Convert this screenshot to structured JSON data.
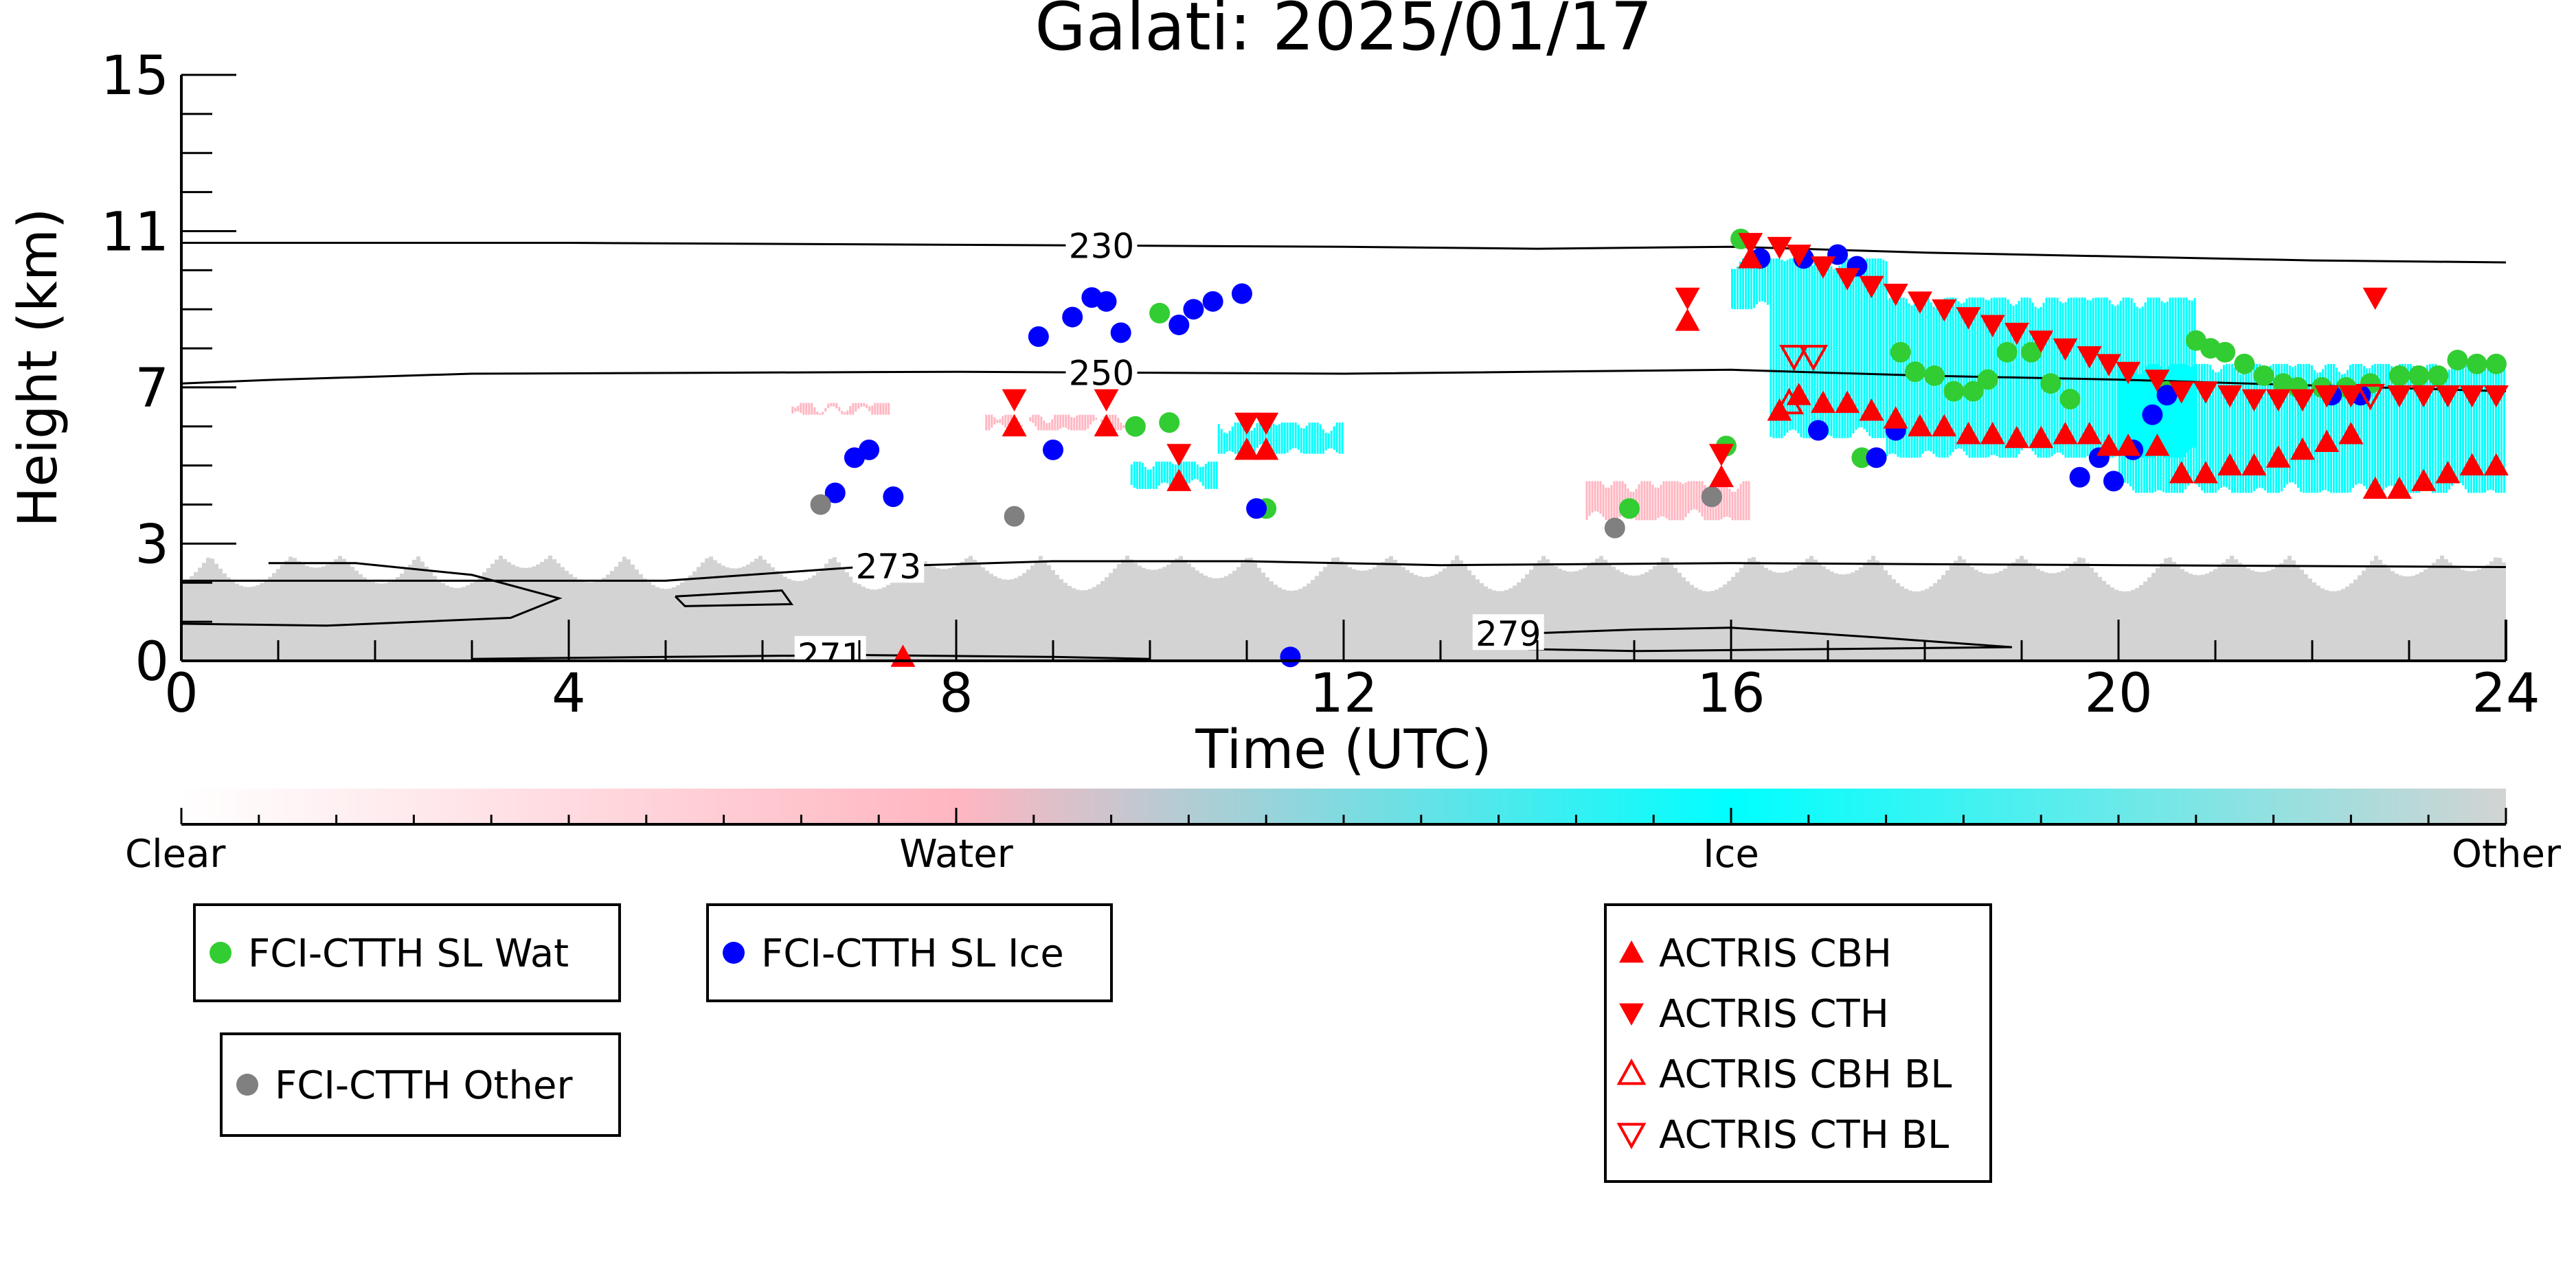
{
  "chart_data": {
    "type": "scatter",
    "title": "Galati: 2025/01/17",
    "xlabel": "Time (UTC)",
    "ylabel": "Height (km)",
    "xlim": [
      0,
      24
    ],
    "ylim": [
      0,
      15
    ],
    "xticks": [
      0,
      4,
      8,
      12,
      16,
      20,
      24
    ],
    "yticks": [
      0,
      3,
      7,
      11,
      15
    ],
    "colors": {
      "water_sat": "#32cd32",
      "ice_sat": "#0000ff",
      "other_sat": "#808080",
      "actris": "#ff0000",
      "clear": "#ffffff",
      "water": "#ffb6c1",
      "ice": "#00ffff",
      "other": "#d3d3d3"
    },
    "colorbar": {
      "labels": [
        "Clear",
        "Water",
        "Ice",
        "Other"
      ]
    },
    "contours": [
      {
        "label": "230",
        "label_x": 9.5,
        "points": [
          [
            0,
            10.7
          ],
          [
            4,
            10.7
          ],
          [
            8,
            10.65
          ],
          [
            12,
            10.6
          ],
          [
            14,
            10.55
          ],
          [
            16,
            10.6
          ],
          [
            18,
            10.45
          ],
          [
            20,
            10.35
          ],
          [
            22,
            10.25
          ],
          [
            24,
            10.2
          ]
        ]
      },
      {
        "label": "250",
        "label_x": 9.5,
        "points": [
          [
            0,
            7.1
          ],
          [
            1,
            7.2
          ],
          [
            3,
            7.35
          ],
          [
            8,
            7.4
          ],
          [
            12,
            7.35
          ],
          [
            16,
            7.45
          ],
          [
            18,
            7.3
          ],
          [
            20,
            7.2
          ],
          [
            22,
            7.05
          ],
          [
            24,
            6.9
          ]
        ]
      },
      {
        "label": "273",
        "label_x": 7.3,
        "points": [
          [
            0,
            2.05
          ],
          [
            5,
            2.05
          ],
          [
            7,
            2.4
          ],
          [
            9,
            2.55
          ],
          [
            11,
            2.55
          ],
          [
            13,
            2.45
          ],
          [
            16,
            2.5
          ],
          [
            20,
            2.45
          ],
          [
            24,
            2.4
          ]
        ]
      },
      {
        "label": "",
        "points": [
          [
            0.9,
            2.5
          ],
          [
            1.8,
            2.5
          ],
          [
            3,
            2.2
          ],
          [
            3.9,
            1.6
          ],
          [
            3.4,
            1.1
          ],
          [
            1.5,
            0.9
          ],
          [
            0,
            0.95
          ]
        ]
      },
      {
        "label": "",
        "points": [
          [
            5.1,
            1.65
          ],
          [
            6.2,
            1.8
          ],
          [
            6.3,
            1.45
          ],
          [
            5.2,
            1.4
          ],
          [
            5.1,
            1.65
          ]
        ]
      },
      {
        "label": "271",
        "label_x": 6.7,
        "points": [
          [
            3,
            0.05
          ],
          [
            5,
            0.1
          ],
          [
            7,
            0.15
          ],
          [
            9,
            0.1
          ],
          [
            10,
            0.05
          ]
        ]
      },
      {
        "label": "279",
        "label_x": 13.7,
        "points": [
          [
            13.9,
            0.7
          ],
          [
            15,
            0.8
          ],
          [
            16,
            0.85
          ],
          [
            17.5,
            0.6
          ],
          [
            18.9,
            0.35
          ],
          [
            17,
            0.3
          ],
          [
            15,
            0.25
          ],
          [
            13.9,
            0.3
          ]
        ]
      }
    ],
    "phase_regions": [
      {
        "phase": "other",
        "x0": 0,
        "x1": 24,
        "y0": 0,
        "y1": 3.4
      },
      {
        "phase": "water",
        "x0": 6.3,
        "x1": 7.3,
        "y0": 6.3,
        "y1": 6.6
      },
      {
        "phase": "water",
        "x0": 8.3,
        "x1": 9.8,
        "y0": 5.9,
        "y1": 6.3
      },
      {
        "phase": "ice",
        "x0": 9.8,
        "x1": 10.7,
        "y0": 4.4,
        "y1": 5.1
      },
      {
        "phase": "ice",
        "x0": 10.7,
        "x1": 12.0,
        "y0": 5.3,
        "y1": 6.1
      },
      {
        "phase": "water",
        "x0": 14.5,
        "x1": 16.2,
        "y0": 3.6,
        "y1": 4.6
      },
      {
        "phase": "ice",
        "x0": 16.0,
        "x1": 16.4,
        "y0": 9.0,
        "y1": 10.3
      },
      {
        "phase": "ice",
        "x0": 16.4,
        "x1": 17.6,
        "y0": 5.7,
        "y1": 10.3
      },
      {
        "phase": "ice",
        "x0": 17.6,
        "x1": 20.8,
        "y0": 5.2,
        "y1": 9.3
      },
      {
        "phase": "ice",
        "x0": 20.0,
        "x1": 24.0,
        "y0": 4.3,
        "y1": 7.6
      }
    ],
    "series": [
      {
        "name": "FCI-CTTH SL Wat",
        "marker": "circle",
        "color": "#32cd32",
        "x": [
          9.85,
          10.1,
          10.2,
          11.2,
          14.95,
          15.95,
          16.1,
          17.35,
          17.75,
          17.9,
          18.1,
          18.3,
          18.5,
          18.65,
          18.85,
          19.1,
          19.3,
          19.5,
          20.5,
          20.8,
          20.95,
          21.1,
          21.3,
          21.5,
          21.7,
          21.85,
          22.1,
          22.35,
          22.6,
          22.9,
          23.1,
          23.3,
          23.5,
          23.7,
          23.9
        ],
        "y": [
          6.0,
          8.9,
          6.1,
          3.9,
          3.9,
          5.5,
          10.8,
          5.2,
          7.9,
          7.4,
          7.3,
          6.9,
          6.9,
          7.2,
          7.9,
          7.9,
          7.1,
          6.7,
          6.9,
          8.2,
          8.0,
          7.9,
          7.6,
          7.3,
          7.1,
          7.0,
          7.0,
          7.0,
          7.1,
          7.3,
          7.3,
          7.3,
          7.7,
          7.6,
          7.6
        ]
      },
      {
        "name": "FCI-CTTH SL Ice",
        "marker": "circle",
        "color": "#0000ff",
        "x": [
          6.75,
          6.95,
          7.1,
          7.35,
          8.85,
          9.0,
          9.2,
          9.4,
          9.55,
          9.7,
          10.3,
          10.45,
          10.65,
          10.95,
          11.1,
          11.45,
          15.8,
          16.3,
          16.75,
          16.9,
          17.1,
          17.3,
          17.5,
          17.7,
          19.6,
          19.8,
          19.95,
          20.15,
          20.35,
          20.5,
          22.2,
          22.5
        ],
        "y": [
          4.3,
          5.2,
          5.4,
          4.2,
          8.3,
          5.4,
          8.8,
          9.3,
          9.2,
          8.4,
          8.6,
          9.0,
          9.2,
          9.4,
          3.9,
          0.1,
          4.2,
          10.3,
          10.3,
          5.9,
          10.4,
          10.1,
          5.2,
          5.9,
          4.7,
          5.2,
          4.6,
          5.4,
          6.3,
          6.8,
          6.8,
          6.8
        ]
      },
      {
        "name": "FCI-CTTH Other",
        "marker": "circle",
        "color": "#808080",
        "x": [
          6.6,
          8.6,
          14.8,
          15.8
        ],
        "y": [
          4.0,
          3.7,
          3.4,
          4.2
        ]
      },
      {
        "name": "ACTRIS CBH",
        "marker": "triangle-up",
        "color": "#ff0000",
        "x": [
          7.45,
          8.6,
          9.55,
          10.3,
          11.0,
          11.2,
          15.55,
          15.9,
          16.2,
          16.5,
          16.7,
          16.95,
          17.2,
          17.45,
          17.7,
          17.95,
          18.2,
          18.45,
          18.7,
          18.95,
          19.2,
          19.45,
          19.7,
          19.9,
          20.1,
          20.4,
          20.65,
          20.9,
          21.15,
          21.4,
          21.65,
          21.9,
          22.15,
          22.4,
          22.65,
          22.9,
          23.15,
          23.4,
          23.65,
          23.9
        ],
        "y": [
          0.1,
          6.0,
          6.0,
          4.6,
          5.4,
          5.4,
          8.7,
          4.7,
          10.3,
          6.4,
          6.8,
          6.6,
          6.6,
          6.4,
          6.2,
          6.0,
          6.0,
          5.8,
          5.8,
          5.7,
          5.7,
          5.8,
          5.8,
          5.5,
          5.5,
          5.5,
          4.8,
          4.8,
          5.0,
          5.0,
          5.2,
          5.4,
          5.6,
          5.8,
          4.4,
          4.4,
          4.6,
          4.8,
          5.0,
          5.0
        ]
      },
      {
        "name": "ACTRIS CTH",
        "marker": "triangle-down",
        "color": "#ff0000",
        "x": [
          8.6,
          9.55,
          10.3,
          11.0,
          11.2,
          15.55,
          15.9,
          16.2,
          16.5,
          16.7,
          16.95,
          17.2,
          17.45,
          17.7,
          17.95,
          18.2,
          18.45,
          18.7,
          18.95,
          19.2,
          19.45,
          19.7,
          19.9,
          20.1,
          20.4,
          20.65,
          20.9,
          21.15,
          21.4,
          21.65,
          21.9,
          22.15,
          22.4,
          22.65,
          22.9,
          23.15,
          23.4,
          23.65,
          23.9
        ],
        "y": [
          6.7,
          6.7,
          5.3,
          6.1,
          6.1,
          9.3,
          5.3,
          10.7,
          10.6,
          10.4,
          10.1,
          9.8,
          9.6,
          9.4,
          9.2,
          9.0,
          8.8,
          8.6,
          8.4,
          8.2,
          8.0,
          7.8,
          7.6,
          7.4,
          7.2,
          6.9,
          6.9,
          6.8,
          6.7,
          6.7,
          6.7,
          6.8,
          6.8,
          9.3,
          6.8,
          6.8,
          6.8,
          6.8,
          6.8
        ]
      },
      {
        "name": "ACTRIS CBH BL",
        "marker": "triangle-up-open",
        "color": "#ff0000",
        "x": [
          16.6
        ],
        "y": [
          6.6
        ]
      },
      {
        "name": "ACTRIS CTH BL",
        "marker": "triangle-down-open",
        "color": "#ff0000",
        "x": [
          16.65,
          16.85,
          22.6
        ],
        "y": [
          7.8,
          7.8,
          6.8
        ]
      }
    ]
  }
}
